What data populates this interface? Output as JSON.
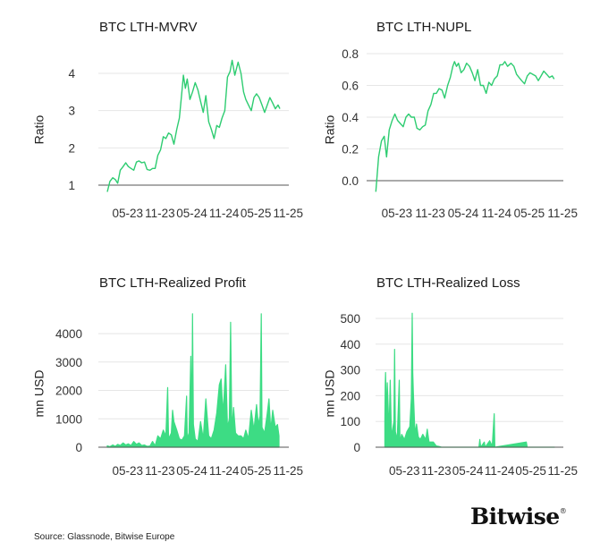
{
  "source": "Source: Glassnode, Bitwise Europe",
  "logo": "Bitwise",
  "colors": {
    "series": "#2ecc71",
    "area": "#3ddc84",
    "grid": "#e6e6e6",
    "baseline": "#555555"
  },
  "chart_data": [
    {
      "type": "line",
      "title": "BTC LTH-MVRV",
      "ylabel": "Ratio",
      "ylim": [
        0.7,
        4.4
      ],
      "yticks": [
        1,
        2,
        3,
        4
      ],
      "ytick_labels": [
        "1",
        "2",
        "3",
        "4"
      ],
      "baseline": 1,
      "xlim": [
        "2022-11-15",
        "2025-11-05"
      ],
      "xticks": [
        "2023-05-01",
        "2023-11-01",
        "2024-05-01",
        "2024-11-01",
        "2025-05-01",
        "2025-11-01"
      ],
      "xtick_labels": [
        "05-23",
        "11-23",
        "05-24",
        "11-24",
        "05-25",
        "11-25"
      ],
      "grid": true,
      "points": [
        [
          "2023-01-05",
          0.82
        ],
        [
          "2023-01-20",
          1.1
        ],
        [
          "2023-02-05",
          1.2
        ],
        [
          "2023-02-20",
          1.15
        ],
        [
          "2023-03-05",
          1.05
        ],
        [
          "2023-03-20",
          1.4
        ],
        [
          "2023-04-05",
          1.5
        ],
        [
          "2023-04-20",
          1.6
        ],
        [
          "2023-05-05",
          1.5
        ],
        [
          "2023-05-20",
          1.45
        ],
        [
          "2023-06-05",
          1.4
        ],
        [
          "2023-06-20",
          1.62
        ],
        [
          "2023-07-05",
          1.65
        ],
        [
          "2023-07-20",
          1.6
        ],
        [
          "2023-08-05",
          1.62
        ],
        [
          "2023-08-20",
          1.42
        ],
        [
          "2023-09-05",
          1.4
        ],
        [
          "2023-09-20",
          1.45
        ],
        [
          "2023-10-05",
          1.45
        ],
        [
          "2023-10-20",
          1.8
        ],
        [
          "2023-11-05",
          1.95
        ],
        [
          "2023-11-20",
          2.3
        ],
        [
          "2023-12-05",
          2.25
        ],
        [
          "2023-12-20",
          2.4
        ],
        [
          "2024-01-05",
          2.35
        ],
        [
          "2024-01-20",
          2.1
        ],
        [
          "2024-02-05",
          2.5
        ],
        [
          "2024-02-20",
          2.8
        ],
        [
          "2024-03-05",
          3.5
        ],
        [
          "2024-03-14",
          3.95
        ],
        [
          "2024-03-25",
          3.6
        ],
        [
          "2024-04-05",
          3.85
        ],
        [
          "2024-04-20",
          3.3
        ],
        [
          "2024-05-05",
          3.5
        ],
        [
          "2024-05-20",
          3.75
        ],
        [
          "2024-06-05",
          3.55
        ],
        [
          "2024-06-20",
          3.25
        ],
        [
          "2024-07-05",
          2.95
        ],
        [
          "2024-07-20",
          3.4
        ],
        [
          "2024-08-05",
          2.7
        ],
        [
          "2024-08-20",
          2.5
        ],
        [
          "2024-09-05",
          2.25
        ],
        [
          "2024-09-20",
          2.6
        ],
        [
          "2024-10-05",
          2.55
        ],
        [
          "2024-10-20",
          2.8
        ],
        [
          "2024-11-05",
          3.0
        ],
        [
          "2024-11-20",
          3.9
        ],
        [
          "2024-12-05",
          4.05
        ],
        [
          "2024-12-17",
          4.35
        ],
        [
          "2025-01-01",
          3.95
        ],
        [
          "2025-01-20",
          4.3
        ],
        [
          "2025-02-05",
          4.0
        ],
        [
          "2025-02-20",
          3.5
        ],
        [
          "2025-03-05",
          3.3
        ],
        [
          "2025-03-20",
          3.15
        ],
        [
          "2025-04-05",
          3.0
        ],
        [
          "2025-04-20",
          3.35
        ],
        [
          "2025-05-05",
          3.45
        ],
        [
          "2025-05-20",
          3.35
        ],
        [
          "2025-06-05",
          3.15
        ],
        [
          "2025-06-20",
          2.95
        ],
        [
          "2025-07-05",
          3.15
        ],
        [
          "2025-07-20",
          3.35
        ],
        [
          "2025-08-05",
          3.2
        ],
        [
          "2025-08-20",
          3.05
        ],
        [
          "2025-09-05",
          3.15
        ],
        [
          "2025-09-15",
          3.05
        ]
      ]
    },
    {
      "type": "line",
      "title": "BTC LTH-NUPL",
      "ylabel": "Ratio",
      "ylim": [
        -0.09,
        0.82
      ],
      "yticks": [
        0.0,
        0.2,
        0.4,
        0.6,
        0.8
      ],
      "ytick_labels": [
        "0.0",
        "0.2",
        "0.4",
        "0.6",
        "0.8"
      ],
      "baseline": 0,
      "xlim": [
        "2022-11-15",
        "2025-11-05"
      ],
      "xticks": [
        "2023-05-01",
        "2023-11-01",
        "2024-05-01",
        "2024-11-01",
        "2025-05-01",
        "2025-11-01"
      ],
      "xtick_labels": [
        "05-23",
        "11-23",
        "05-24",
        "11-24",
        "05-25",
        "11-25"
      ],
      "grid": true,
      "points": [
        [
          "2023-01-05",
          -0.07
        ],
        [
          "2023-01-20",
          0.15
        ],
        [
          "2023-02-05",
          0.25
        ],
        [
          "2023-02-20",
          0.28
        ],
        [
          "2023-03-05",
          0.15
        ],
        [
          "2023-03-20",
          0.32
        ],
        [
          "2023-04-05",
          0.38
        ],
        [
          "2023-04-20",
          0.42
        ],
        [
          "2023-05-05",
          0.38
        ],
        [
          "2023-05-20",
          0.36
        ],
        [
          "2023-06-05",
          0.34
        ],
        [
          "2023-06-20",
          0.4
        ],
        [
          "2023-07-05",
          0.42
        ],
        [
          "2023-07-20",
          0.4
        ],
        [
          "2023-08-05",
          0.4
        ],
        [
          "2023-08-20",
          0.33
        ],
        [
          "2023-09-05",
          0.32
        ],
        [
          "2023-09-20",
          0.34
        ],
        [
          "2023-10-05",
          0.35
        ],
        [
          "2023-10-20",
          0.44
        ],
        [
          "2023-11-05",
          0.48
        ],
        [
          "2023-11-20",
          0.55
        ],
        [
          "2023-12-05",
          0.55
        ],
        [
          "2023-12-20",
          0.58
        ],
        [
          "2024-01-05",
          0.57
        ],
        [
          "2024-01-20",
          0.52
        ],
        [
          "2024-02-05",
          0.6
        ],
        [
          "2024-02-20",
          0.65
        ],
        [
          "2024-03-05",
          0.72
        ],
        [
          "2024-03-14",
          0.75
        ],
        [
          "2024-03-25",
          0.72
        ],
        [
          "2024-04-05",
          0.74
        ],
        [
          "2024-04-20",
          0.68
        ],
        [
          "2024-05-05",
          0.7
        ],
        [
          "2024-05-20",
          0.74
        ],
        [
          "2024-06-05",
          0.72
        ],
        [
          "2024-06-20",
          0.68
        ],
        [
          "2024-07-05",
          0.63
        ],
        [
          "2024-07-20",
          0.7
        ],
        [
          "2024-08-05",
          0.6
        ],
        [
          "2024-08-20",
          0.6
        ],
        [
          "2024-09-05",
          0.55
        ],
        [
          "2024-09-20",
          0.62
        ],
        [
          "2024-10-05",
          0.6
        ],
        [
          "2024-10-20",
          0.64
        ],
        [
          "2024-11-05",
          0.66
        ],
        [
          "2024-11-20",
          0.73
        ],
        [
          "2024-12-05",
          0.73
        ],
        [
          "2024-12-17",
          0.75
        ],
        [
          "2025-01-01",
          0.72
        ],
        [
          "2025-01-20",
          0.74
        ],
        [
          "2025-02-05",
          0.72
        ],
        [
          "2025-02-20",
          0.67
        ],
        [
          "2025-03-05",
          0.65
        ],
        [
          "2025-03-20",
          0.63
        ],
        [
          "2025-04-05",
          0.61
        ],
        [
          "2025-04-20",
          0.66
        ],
        [
          "2025-05-05",
          0.68
        ],
        [
          "2025-05-20",
          0.67
        ],
        [
          "2025-06-05",
          0.66
        ],
        [
          "2025-06-20",
          0.63
        ],
        [
          "2025-07-05",
          0.66
        ],
        [
          "2025-07-20",
          0.69
        ],
        [
          "2025-08-05",
          0.67
        ],
        [
          "2025-08-20",
          0.65
        ],
        [
          "2025-09-05",
          0.66
        ],
        [
          "2025-09-15",
          0.64
        ]
      ]
    },
    {
      "type": "area",
      "title": "BTC LTH-Realized Profit",
      "ylabel": "mn USD",
      "ylim": [
        0,
        4900
      ],
      "yticks": [
        0,
        1000,
        2000,
        3000,
        4000
      ],
      "ytick_labels": [
        "0",
        "1000",
        "2000",
        "3000",
        "4000"
      ],
      "baseline": 0,
      "xlim": [
        "2022-11-15",
        "2025-11-05"
      ],
      "xticks": [
        "2023-05-01",
        "2023-11-01",
        "2024-05-01",
        "2024-11-01",
        "2025-05-01",
        "2025-11-01"
      ],
      "xtick_labels": [
        "05-23",
        "11-23",
        "05-24",
        "11-24",
        "05-25",
        "11-25"
      ],
      "grid": true,
      "points": [
        [
          "2023-01-05",
          50
        ],
        [
          "2023-01-20",
          20
        ],
        [
          "2023-02-05",
          80
        ],
        [
          "2023-02-20",
          30
        ],
        [
          "2023-03-05",
          100
        ],
        [
          "2023-03-20",
          60
        ],
        [
          "2023-04-05",
          150
        ],
        [
          "2023-04-20",
          80
        ],
        [
          "2023-05-05",
          120
        ],
        [
          "2023-05-20",
          60
        ],
        [
          "2023-06-05",
          200
        ],
        [
          "2023-06-20",
          100
        ],
        [
          "2023-07-05",
          150
        ],
        [
          "2023-07-20",
          60
        ],
        [
          "2023-08-05",
          80
        ],
        [
          "2023-08-20",
          30
        ],
        [
          "2023-09-05",
          40
        ],
        [
          "2023-09-20",
          200
        ],
        [
          "2023-10-05",
          50
        ],
        [
          "2023-10-20",
          400
        ],
        [
          "2023-11-05",
          300
        ],
        [
          "2023-11-20",
          600
        ],
        [
          "2023-12-05",
          400
        ],
        [
          "2023-12-15",
          2100
        ],
        [
          "2023-12-20",
          300
        ],
        [
          "2024-01-05",
          500
        ],
        [
          "2024-01-12",
          1300
        ],
        [
          "2024-01-20",
          900
        ],
        [
          "2024-02-05",
          600
        ],
        [
          "2024-02-20",
          300
        ],
        [
          "2024-03-05",
          250
        ],
        [
          "2024-03-20",
          400
        ],
        [
          "2024-04-01",
          1800
        ],
        [
          "2024-04-05",
          300
        ],
        [
          "2024-04-15",
          500
        ],
        [
          "2024-04-25",
          3200
        ],
        [
          "2024-05-01",
          600
        ],
        [
          "2024-05-05",
          4700
        ],
        [
          "2024-05-10",
          800
        ],
        [
          "2024-05-20",
          300
        ],
        [
          "2024-06-05",
          200
        ],
        [
          "2024-06-20",
          900
        ],
        [
          "2024-07-05",
          300
        ],
        [
          "2024-07-20",
          1700
        ],
        [
          "2024-08-05",
          400
        ],
        [
          "2024-08-20",
          300
        ],
        [
          "2024-09-05",
          600
        ],
        [
          "2024-09-20",
          1200
        ],
        [
          "2024-10-05",
          2200
        ],
        [
          "2024-10-15",
          2400
        ],
        [
          "2024-10-25",
          1200
        ],
        [
          "2024-11-01",
          1800
        ],
        [
          "2024-11-10",
          2900
        ],
        [
          "2024-11-20",
          700
        ],
        [
          "2024-12-01",
          1000
        ],
        [
          "2024-12-08",
          4400
        ],
        [
          "2024-12-15",
          600
        ],
        [
          "2024-12-25",
          1400
        ],
        [
          "2025-01-05",
          500
        ],
        [
          "2025-01-20",
          400
        ],
        [
          "2025-02-05",
          400
        ],
        [
          "2025-02-20",
          300
        ],
        [
          "2025-03-05",
          600
        ],
        [
          "2025-03-20",
          300
        ],
        [
          "2025-04-05",
          1300
        ],
        [
          "2025-04-20",
          600
        ],
        [
          "2025-05-05",
          1500
        ],
        [
          "2025-05-15",
          800
        ],
        [
          "2025-05-25",
          1100
        ],
        [
          "2025-06-01",
          4700
        ],
        [
          "2025-06-05",
          700
        ],
        [
          "2025-06-20",
          500
        ],
        [
          "2025-07-05",
          1200
        ],
        [
          "2025-07-15",
          1700
        ],
        [
          "2025-07-25",
          600
        ],
        [
          "2025-08-05",
          1300
        ],
        [
          "2025-08-20",
          700
        ],
        [
          "2025-09-01",
          800
        ],
        [
          "2025-09-10",
          400
        ]
      ]
    },
    {
      "type": "area",
      "title": "BTC LTH-Realized Loss",
      "ylabel": "mn USD",
      "ylim": [
        0,
        540
      ],
      "yticks": [
        0,
        100,
        200,
        300,
        400,
        500
      ],
      "ytick_labels": [
        "0",
        "100",
        "200",
        "300",
        "400",
        "500"
      ],
      "baseline": 0,
      "xlim": [
        "2022-11-15",
        "2025-11-05"
      ],
      "xticks": [
        "2023-05-01",
        "2023-11-01",
        "2024-05-01",
        "2024-11-01",
        "2025-05-01",
        "2025-11-01"
      ],
      "xtick_labels": [
        "05-23",
        "11-23",
        "05-24",
        "11-24",
        "05-25",
        "11-25"
      ],
      "grid": true,
      "points": [
        [
          "2023-01-08",
          100
        ],
        [
          "2023-01-10",
          240
        ],
        [
          "2023-01-12",
          290
        ],
        [
          "2023-01-18",
          100
        ],
        [
          "2023-01-22",
          250
        ],
        [
          "2023-02-01",
          60
        ],
        [
          "2023-02-08",
          260
        ],
        [
          "2023-02-15",
          40
        ],
        [
          "2023-03-01",
          100
        ],
        [
          "2023-03-05",
          380
        ],
        [
          "2023-03-10",
          60
        ],
        [
          "2023-03-20",
          30
        ],
        [
          "2023-04-01",
          260
        ],
        [
          "2023-04-05",
          20
        ],
        [
          "2023-04-15",
          50
        ],
        [
          "2023-05-01",
          30
        ],
        [
          "2023-05-15",
          60
        ],
        [
          "2023-06-01",
          80
        ],
        [
          "2023-06-10",
          190
        ],
        [
          "2023-06-15",
          520
        ],
        [
          "2023-06-18",
          290
        ],
        [
          "2023-06-22",
          210
        ],
        [
          "2023-07-01",
          50
        ],
        [
          "2023-07-10",
          90
        ],
        [
          "2023-07-20",
          40
        ],
        [
          "2023-08-01",
          30
        ],
        [
          "2023-08-15",
          50
        ],
        [
          "2023-09-01",
          30
        ],
        [
          "2023-09-10",
          70
        ],
        [
          "2023-09-20",
          20
        ],
        [
          "2023-10-01",
          20
        ],
        [
          "2023-10-15",
          20
        ],
        [
          "2023-11-01",
          5
        ],
        [
          "2023-11-15",
          3
        ],
        [
          "2023-12-01",
          0
        ],
        [
          "2024-07-05",
          0
        ],
        [
          "2024-07-10",
          30
        ],
        [
          "2024-07-15",
          0
        ],
        [
          "2024-08-05",
          20
        ],
        [
          "2024-08-10",
          0
        ],
        [
          "2024-09-05",
          25
        ],
        [
          "2024-09-20",
          5
        ],
        [
          "2024-10-01",
          130
        ],
        [
          "2024-10-05",
          0
        ],
        [
          "2025-04-05",
          20
        ],
        [
          "2025-04-10",
          0
        ],
        [
          "2025-09-15",
          0
        ]
      ]
    }
  ]
}
